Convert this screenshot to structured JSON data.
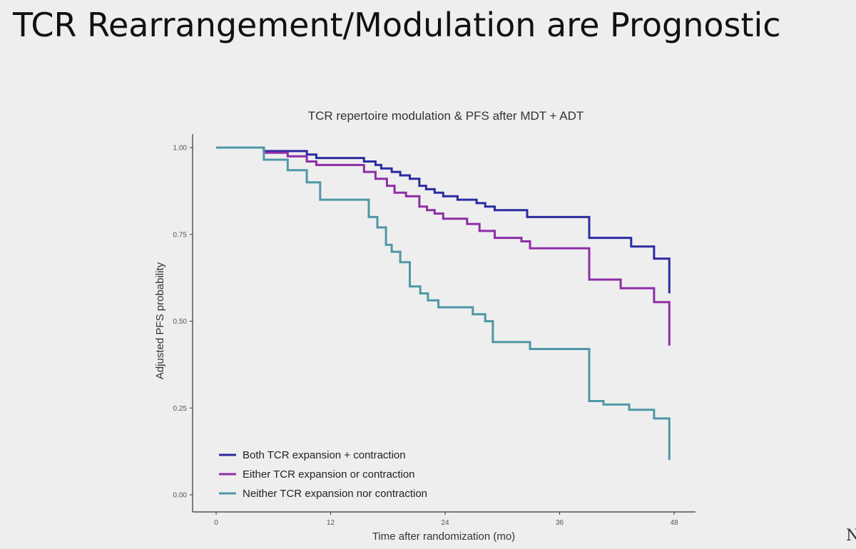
{
  "slide": {
    "title": "TCR Rearrangement/Modulation are Prognostic"
  },
  "chart_data": {
    "type": "line",
    "step": true,
    "title": "TCR repertoire modulation & PFS after MDT + ADT",
    "xlabel": "Time after randomization (mo)",
    "ylabel": "Adjusted PFS probability",
    "xlim": [
      0,
      48
    ],
    "ylim": [
      0,
      1
    ],
    "xticks": [
      0,
      12,
      24,
      36,
      48
    ],
    "xtick_labels": [
      "0",
      "12",
      "24",
      "36",
      "48"
    ],
    "yticks": [
      0,
      0.25,
      0.5,
      0.75,
      1
    ],
    "ytick_labels": [
      "0.00",
      "0.25",
      "0.50",
      "0.75",
      "1.00"
    ],
    "grid": false,
    "legend_position": "bottom-left",
    "series": [
      {
        "name": "Both TCR expansion + contraction",
        "color": "#2b2ba3",
        "x": [
          0,
          4.8,
          5.0,
          9.5,
          10.5,
          15.5,
          16.7,
          17.3,
          18.4,
          19.3,
          20.3,
          21.3,
          22.0,
          22.9,
          23.8,
          25.3,
          27.3,
          28.2,
          29.2,
          32.6,
          39.1,
          40.6,
          43.5,
          45.9,
          47.5,
          47.5
        ],
        "y": [
          1.0,
          1.0,
          0.99,
          0.98,
          0.97,
          0.96,
          0.95,
          0.94,
          0.93,
          0.92,
          0.91,
          0.89,
          0.88,
          0.87,
          0.86,
          0.85,
          0.84,
          0.83,
          0.82,
          0.8,
          0.74,
          0.74,
          0.715,
          0.68,
          0.58,
          0.58
        ]
      },
      {
        "name": "Either TCR expansion or contraction",
        "color": "#8e2ea6",
        "x": [
          0,
          4.8,
          5.0,
          7.5,
          9.5,
          10.5,
          15.5,
          16.7,
          17.9,
          18.7,
          19.9,
          21.3,
          22.1,
          22.9,
          23.8,
          26.3,
          27.6,
          29.2,
          32.0,
          32.9,
          39.1,
          40.3,
          42.4,
          45.9,
          47.5,
          47.5
        ],
        "y": [
          1.0,
          1.0,
          0.985,
          0.975,
          0.96,
          0.95,
          0.93,
          0.91,
          0.89,
          0.87,
          0.86,
          0.83,
          0.82,
          0.81,
          0.795,
          0.78,
          0.76,
          0.74,
          0.73,
          0.71,
          0.62,
          0.62,
          0.595,
          0.555,
          0.43,
          0.43
        ]
      },
      {
        "name": "Neither TCR expansion nor contraction",
        "color": "#4f97a6",
        "x": [
          0,
          4.8,
          5.0,
          7.5,
          9.5,
          10.9,
          16.0,
          16.9,
          17.8,
          18.4,
          19.3,
          20.3,
          21.4,
          22.2,
          23.3,
          26.9,
          28.2,
          29.0,
          32.9,
          39.1,
          40.6,
          43.3,
          45.9,
          47.5,
          47.5
        ],
        "y": [
          1.0,
          1.0,
          0.965,
          0.935,
          0.9,
          0.85,
          0.8,
          0.77,
          0.72,
          0.7,
          0.67,
          0.6,
          0.58,
          0.56,
          0.54,
          0.52,
          0.5,
          0.44,
          0.42,
          0.27,
          0.26,
          0.245,
          0.22,
          0.1,
          0.1
        ]
      }
    ]
  }
}
